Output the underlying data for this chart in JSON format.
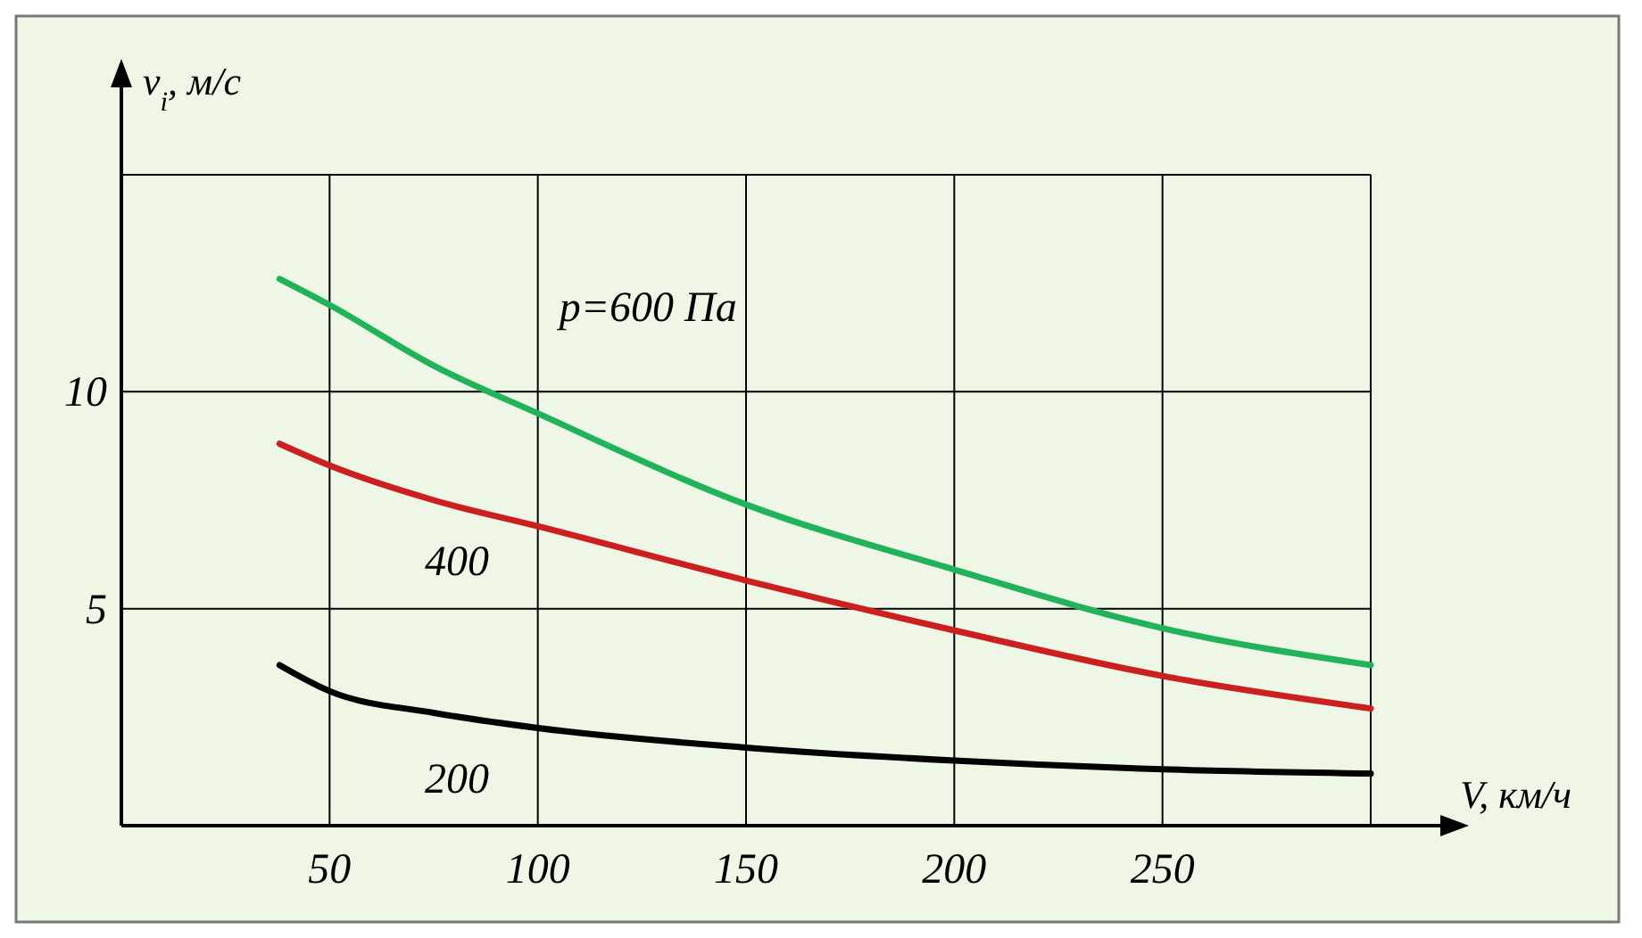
{
  "chart_data": {
    "type": "line",
    "xlabel": "V, км/ч",
    "ylabel": "v$_{i}$, м/с",
    "xlim": [
      0,
      300
    ],
    "ylim": [
      0,
      15
    ],
    "xticks": [
      50,
      100,
      150,
      200,
      250,
      {
        "value": 300,
        "label": null
      }
    ],
    "yticks": [
      5,
      10,
      {
        "value": 15,
        "label": null
      }
    ],
    "grid": true,
    "marker": "none",
    "line_style": "solid",
    "x": [
      38,
      50,
      75,
      100,
      150,
      200,
      250,
      300
    ],
    "series": [
      {
        "name": "p=600 Па",
        "color": "#22b35a",
        "values": [
          12.6,
          12.0,
          10.6,
          9.5,
          7.4,
          5.9,
          4.55,
          3.7
        ]
      },
      {
        "name": "400",
        "color": "#cc1f1f",
        "values": [
          8.8,
          8.3,
          7.5,
          6.9,
          5.65,
          4.5,
          3.45,
          2.7
        ]
      },
      {
        "name": "200",
        "color": "#000000",
        "values": [
          3.7,
          3.1,
          2.6,
          2.25,
          1.8,
          1.5,
          1.3,
          1.2
        ]
      }
    ]
  }
}
